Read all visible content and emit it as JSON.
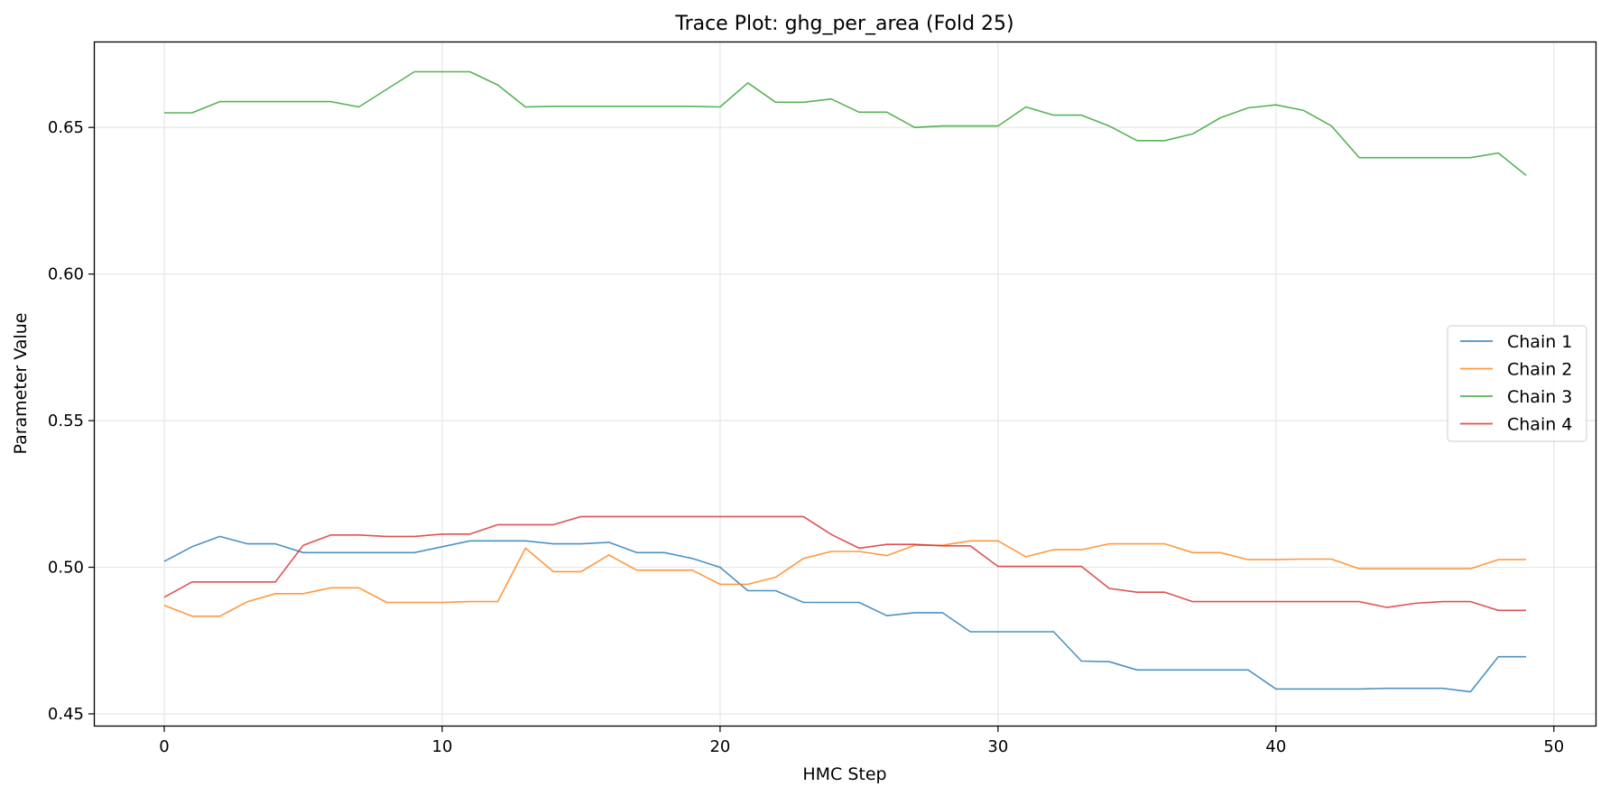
{
  "chart_data": {
    "type": "line",
    "title": "Trace Plot: ghg_per_area (Fold 25)",
    "xlabel": "HMC Step",
    "ylabel": "Parameter Value",
    "xlim": [
      -2.5,
      51.5
    ],
    "ylim": [
      0.446,
      0.679
    ],
    "x_ticks": [
      0,
      10,
      20,
      30,
      40,
      50
    ],
    "y_ticks": [
      0.45,
      0.5,
      0.55,
      0.6,
      0.65
    ],
    "y_tick_labels": [
      "0.45",
      "0.50",
      "0.55",
      "0.60",
      "0.65"
    ],
    "grid": true,
    "legend_position": "center-right",
    "x": [
      0,
      1,
      2,
      3,
      4,
      5,
      6,
      7,
      8,
      9,
      10,
      11,
      12,
      13,
      14,
      15,
      16,
      17,
      18,
      19,
      20,
      21,
      22,
      23,
      24,
      25,
      26,
      27,
      28,
      29,
      30,
      31,
      32,
      33,
      34,
      35,
      36,
      37,
      38,
      39,
      40,
      41,
      42,
      43,
      44,
      45,
      46,
      47,
      48,
      49
    ],
    "series": [
      {
        "name": "Chain 1",
        "color": "#1f77b4",
        "values": [
          0.502,
          0.507,
          0.5105,
          0.508,
          0.508,
          0.505,
          0.505,
          0.505,
          0.505,
          0.505,
          0.507,
          0.509,
          0.509,
          0.509,
          0.508,
          0.508,
          0.5085,
          0.505,
          0.505,
          0.503,
          0.5,
          0.492,
          0.492,
          0.488,
          0.488,
          0.488,
          0.4835,
          0.4845,
          0.4845,
          0.478,
          0.478,
          0.478,
          0.478,
          0.468,
          0.4678,
          0.465,
          0.465,
          0.465,
          0.465,
          0.465,
          0.4585,
          0.4585,
          0.4585,
          0.4585,
          0.4587,
          0.4587,
          0.4587,
          0.4575,
          0.4695,
          0.4695
        ]
      },
      {
        "name": "Chain 2",
        "color": "#ff7f0e",
        "values": [
          0.487,
          0.4833,
          0.4833,
          0.4883,
          0.491,
          0.491,
          0.493,
          0.493,
          0.488,
          0.488,
          0.488,
          0.4883,
          0.4883,
          0.5065,
          0.4985,
          0.4985,
          0.5042,
          0.499,
          0.499,
          0.499,
          0.4942,
          0.4942,
          0.4966,
          0.503,
          0.5054,
          0.5054,
          0.504,
          0.5075,
          0.5075,
          0.509,
          0.509,
          0.5036,
          0.506,
          0.506,
          0.508,
          0.508,
          0.508,
          0.505,
          0.505,
          0.5026,
          0.5026,
          0.5028,
          0.5028,
          0.4995,
          0.4995,
          0.4995,
          0.4995,
          0.4995,
          0.5026,
          0.5026
        ]
      },
      {
        "name": "Chain 3",
        "color": "#2ca02c",
        "values": [
          0.655,
          0.655,
          0.6588,
          0.6588,
          0.6588,
          0.6588,
          0.6588,
          0.657,
          0.663,
          0.669,
          0.669,
          0.669,
          0.6645,
          0.657,
          0.6572,
          0.6572,
          0.6572,
          0.6572,
          0.6572,
          0.6572,
          0.657,
          0.6652,
          0.6586,
          0.6586,
          0.6597,
          0.6552,
          0.6552,
          0.65,
          0.6505,
          0.6505,
          0.6505,
          0.657,
          0.6542,
          0.6542,
          0.6505,
          0.6455,
          0.6455,
          0.6478,
          0.6533,
          0.6567,
          0.6577,
          0.6558,
          0.6505,
          0.6397,
          0.6397,
          0.6397,
          0.6397,
          0.6397,
          0.6413,
          0.6337
        ]
      },
      {
        "name": "Chain 4",
        "color": "#d62728",
        "values": [
          0.4898,
          0.495,
          0.495,
          0.495,
          0.495,
          0.5075,
          0.511,
          0.511,
          0.5105,
          0.5105,
          0.5113,
          0.5113,
          0.5145,
          0.5145,
          0.5145,
          0.5173,
          0.5173,
          0.5173,
          0.5173,
          0.5173,
          0.5173,
          0.5173,
          0.5173,
          0.5173,
          0.5112,
          0.5065,
          0.5078,
          0.5078,
          0.5073,
          0.5073,
          0.5003,
          0.5003,
          0.5003,
          0.5003,
          0.4928,
          0.4915,
          0.4915,
          0.4883,
          0.4883,
          0.4883,
          0.4883,
          0.4883,
          0.4883,
          0.4883,
          0.4863,
          0.4877,
          0.4883,
          0.4883,
          0.4853,
          0.4853
        ]
      }
    ]
  }
}
